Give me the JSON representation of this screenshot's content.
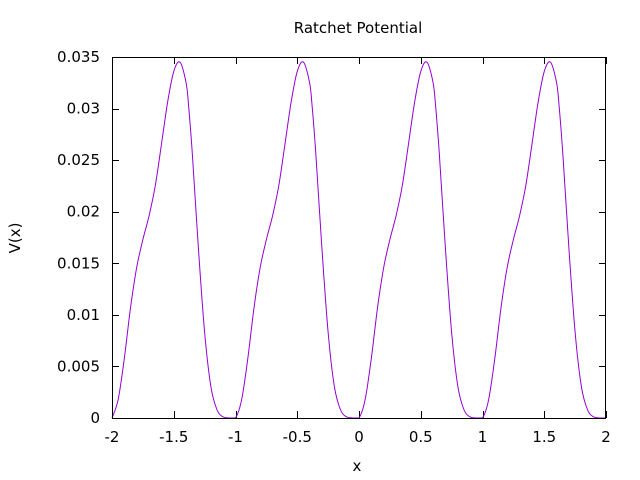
{
  "chart_data": {
    "type": "line",
    "title": "Ratchet Potential",
    "xlabel": "x",
    "ylabel": "V(x)",
    "xlim": [
      -2,
      2
    ],
    "ylim": [
      0,
      0.035
    ],
    "x_ticks": [
      -2,
      -1.5,
      -1,
      -0.5,
      0,
      0.5,
      1,
      1.5,
      2
    ],
    "x_tick_labels": [
      "-2",
      "-1.5",
      "-1",
      "-0.5",
      "0",
      "0.5",
      "1",
      "1.5",
      "2"
    ],
    "y_ticks": [
      0,
      0.005,
      0.01,
      0.015,
      0.02,
      0.025,
      0.03,
      0.035
    ],
    "y_tick_labels": [
      "0",
      "0.005",
      "0.01",
      "0.015",
      "0.02",
      "0.025",
      "0.03",
      "0.035"
    ],
    "grid": false,
    "legend": "none",
    "line_color": "#9400d3",
    "series": [
      {
        "x": [
          -2.0,
          -1.95,
          -1.9,
          -1.85,
          -1.8,
          -1.75,
          -1.7,
          -1.65,
          -1.6,
          -1.55,
          -1.5,
          -1.45,
          -1.4,
          -1.38,
          -1.35,
          -1.3,
          -1.25,
          -1.2,
          -1.15,
          -1.1,
          -1.05,
          -1.0,
          -0.95,
          -0.9,
          -0.85,
          -0.8,
          -0.75,
          -0.7,
          -0.65,
          -0.6,
          -0.55,
          -0.5,
          -0.45,
          -0.4,
          -0.38,
          -0.35,
          -0.3,
          -0.25,
          -0.2,
          -0.15,
          -0.1,
          -0.05,
          0.0,
          0.05,
          0.1,
          0.15,
          0.2,
          0.25,
          0.3,
          0.35,
          0.4,
          0.45,
          0.5,
          0.55,
          0.6,
          0.62,
          0.65,
          0.7,
          0.75,
          0.8,
          0.85,
          0.9,
          0.95,
          1.0,
          1.05,
          1.1,
          1.15,
          1.2,
          1.25,
          1.3,
          1.35,
          1.4,
          1.45,
          1.5,
          1.55,
          1.6,
          1.62,
          1.65,
          1.7,
          1.75,
          1.8,
          1.85,
          1.9,
          1.95,
          2.0
        ],
        "y": [
          0.0,
          0.0018,
          0.0058,
          0.0107,
          0.0146,
          0.0173,
          0.0196,
          0.0225,
          0.0265,
          0.0306,
          0.0336,
          0.0345,
          0.0325,
          0.0303,
          0.0257,
          0.0164,
          0.0083,
          0.0031,
          0.0008,
          0.0001,
          0.0,
          0.0,
          0.0018,
          0.0058,
          0.0107,
          0.0146,
          0.0173,
          0.0196,
          0.0225,
          0.0265,
          0.0306,
          0.0336,
          0.0345,
          0.0325,
          0.0303,
          0.0257,
          0.0164,
          0.0083,
          0.0031,
          0.0008,
          0.0001,
          0.0,
          0.0,
          0.0018,
          0.0058,
          0.0107,
          0.0146,
          0.0173,
          0.0196,
          0.0225,
          0.0265,
          0.0306,
          0.0336,
          0.0345,
          0.0325,
          0.0303,
          0.0257,
          0.0164,
          0.0083,
          0.0031,
          0.0008,
          0.0001,
          0.0,
          0.0,
          0.0018,
          0.0058,
          0.0107,
          0.0146,
          0.0173,
          0.0196,
          0.0225,
          0.0265,
          0.0306,
          0.0336,
          0.0345,
          0.0325,
          0.0303,
          0.0257,
          0.0164,
          0.0083,
          0.0031,
          0.0008,
          0.0001,
          0.0,
          0.0
        ]
      }
    ]
  }
}
